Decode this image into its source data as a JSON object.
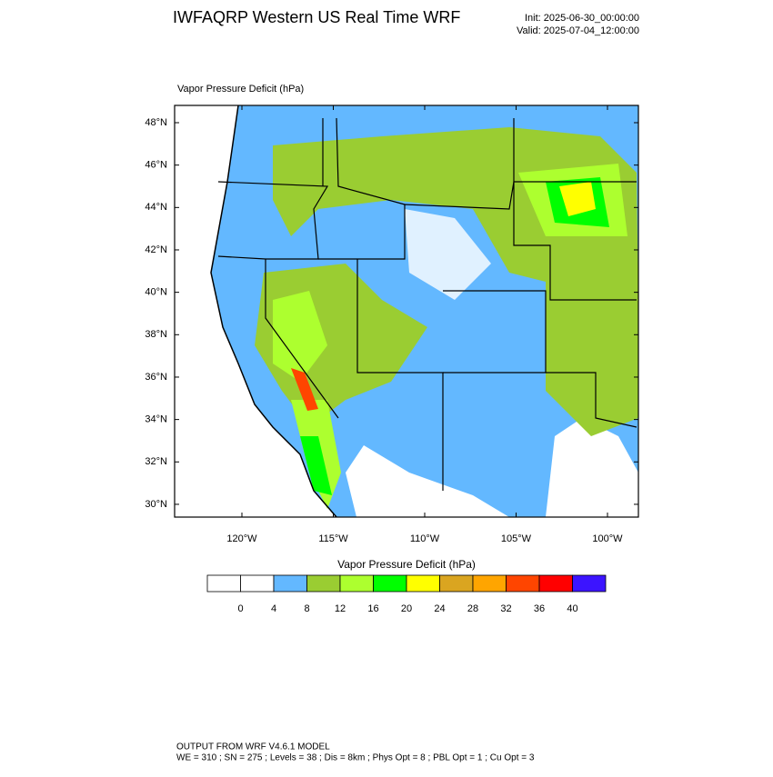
{
  "header": {
    "title": "IWFAQRP Western US Real Time WRF",
    "init": "Init: 2025-06-30_00:00:00",
    "valid": "Valid: 2025-07-04_12:00:00"
  },
  "map": {
    "field_label": "Vapor Pressure Deficit   (hPa)",
    "lat_ticks": [
      {
        "value": 48,
        "label": "48°N"
      },
      {
        "value": 46,
        "label": "46°N"
      },
      {
        "value": 44,
        "label": "44°N"
      },
      {
        "value": 42,
        "label": "42°N"
      },
      {
        "value": 40,
        "label": "40°N"
      },
      {
        "value": 38,
        "label": "38°N"
      },
      {
        "value": 36,
        "label": "36°N"
      },
      {
        "value": 34,
        "label": "34°N"
      },
      {
        "value": 32,
        "label": "32°N"
      },
      {
        "value": 30,
        "label": "30°N"
      }
    ],
    "lon_ticks": [
      {
        "value": 120,
        "label": "120°W"
      },
      {
        "value": 115,
        "label": "115°W"
      },
      {
        "value": 110,
        "label": "110°W"
      },
      {
        "value": 105,
        "label": "105°W"
      },
      {
        "value": 100,
        "label": "100°W"
      }
    ]
  },
  "colorbar": {
    "label": "Vapor Pressure Deficit  (hPa)",
    "levels": [
      0,
      4,
      8,
      12,
      16,
      20,
      24,
      28,
      32,
      36,
      40
    ],
    "colors": [
      "#ffffff",
      "#ffffff",
      "#63b8ff",
      "#9acd32",
      "#adff2f",
      "#00ff00",
      "#ffff00",
      "#daa520",
      "#ffa500",
      "#ff4500",
      "#ff0000",
      "#3c14ff"
    ]
  },
  "footer": {
    "line1": "OUTPUT FROM WRF V4.6.1 MODEL",
    "line2": "WE = 310 ; SN = 275 ; Levels = 38 ; Dis = 8km ; Phys Opt = 8 ; PBL Opt = 1 ; Cu Opt = 3"
  }
}
